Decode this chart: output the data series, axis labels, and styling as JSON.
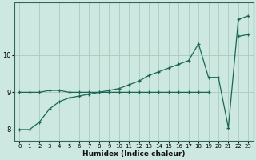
{
  "xlabel": "Humidex (Indice chaleur)",
  "bg_color": "#cce8e0",
  "line_color": "#1a6655",
  "grid_color": "#aaccbb",
  "x": [
    0,
    1,
    2,
    3,
    4,
    5,
    6,
    7,
    8,
    9,
    10,
    11,
    12,
    13,
    14,
    15,
    16,
    17,
    18,
    19,
    20,
    21,
    22,
    23
  ],
  "line1_y": [
    9.0,
    9.0,
    9.0,
    9.05,
    9.05,
    9.0,
    9.0,
    9.0,
    9.0,
    9.0,
    9.0,
    9.0,
    9.0,
    9.0,
    9.0,
    9.0,
    9.0,
    9.0,
    9.0,
    9.0,
    null,
    null,
    10.5,
    10.55
  ],
  "line2_y": [
    8.0,
    8.0,
    8.2,
    8.55,
    8.75,
    8.85,
    8.9,
    8.95,
    9.0,
    9.05,
    9.1,
    9.2,
    9.3,
    9.45,
    9.55,
    9.65,
    9.75,
    9.85,
    10.3,
    9.4,
    9.4,
    8.05,
    10.95,
    11.05
  ],
  "ylim": [
    7.7,
    11.4
  ],
  "xlim": [
    -0.5,
    23.5
  ],
  "yticks": [
    8,
    9,
    10
  ],
  "xticks": [
    0,
    1,
    2,
    3,
    4,
    5,
    6,
    7,
    8,
    9,
    10,
    11,
    12,
    13,
    14,
    15,
    16,
    17,
    18,
    19,
    20,
    21,
    22,
    23
  ],
  "figsize": [
    3.2,
    2.0
  ],
  "dpi": 100
}
